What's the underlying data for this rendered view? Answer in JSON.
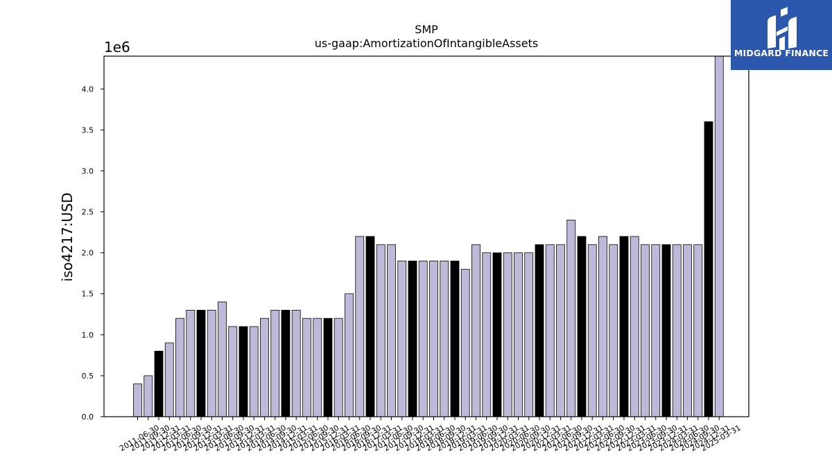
{
  "chart_data": {
    "type": "bar",
    "title": "SMP",
    "subtitle": "us-gaap:AmortizationOfIntangibleAssets",
    "ylabel": "iso4217:USD",
    "xlabel": "",
    "offset_text": "1e6",
    "scale": 1000000,
    "ylim": [
      0,
      4400000
    ],
    "yticks": [
      0,
      500000,
      1000000,
      1500000,
      2000000,
      2500000,
      3000000,
      3500000,
      4000000
    ],
    "ytick_labels": [
      "0.0",
      "0.5",
      "1.0",
      "1.5",
      "2.0",
      "2.5",
      "3.0",
      "3.5",
      "4.0"
    ],
    "grid": false,
    "colors": {
      "regular": "#bcbad8",
      "highlight": "#000000",
      "edge": "#000000"
    },
    "categories": [
      "2011-06-30",
      "2011-09-30",
      "2011-12-31",
      "2012-03-31",
      "2012-06-30",
      "2012-09-30",
      "2012-12-31",
      "2013-03-31",
      "2013-06-30",
      "2013-09-30",
      "2013-12-31",
      "2014-03-31",
      "2014-06-30",
      "2014-09-30",
      "2014-12-31",
      "2015-03-31",
      "2015-06-30",
      "2015-09-30",
      "2015-12-31",
      "2016-03-31",
      "2016-06-30",
      "2016-09-30",
      "2016-12-31",
      "2017-03-31",
      "2017-06-30",
      "2017-09-30",
      "2017-12-31",
      "2018-03-31",
      "2018-06-30",
      "2018-09-30",
      "2018-12-31",
      "2019-03-31",
      "2019-06-30",
      "2019-09-30",
      "2019-12-31",
      "2020-03-31",
      "2020-06-30",
      "2020-09-30",
      "2020-12-31",
      "2021-03-31",
      "2021-06-30",
      "2021-09-30",
      "2021-12-31",
      "2022-03-31",
      "2022-06-30",
      "2022-09-30",
      "2022-12-31",
      "2023-03-31",
      "2023-06-30",
      "2023-09-30",
      "2023-12-31",
      "2024-03-31",
      "2024-06-30",
      "2024-09-30",
      "2024-12-31",
      "2025-03-31"
    ],
    "values": [
      400000,
      500000,
      800000,
      900000,
      1200000,
      1300000,
      1300000,
      1300000,
      1400000,
      1100000,
      1100000,
      1100000,
      1200000,
      1300000,
      1300000,
      1300000,
      1200000,
      1200000,
      1200000,
      1200000,
      1500000,
      2200000,
      2200000,
      2100000,
      2100000,
      1900000,
      1900000,
      1900000,
      1900000,
      1900000,
      1900000,
      1800000,
      2100000,
      2000000,
      2000000,
      2000000,
      2000000,
      2000000,
      2100000,
      2100000,
      2100000,
      2400000,
      2200000,
      2100000,
      2200000,
      2100000,
      2200000,
      2200000,
      2100000,
      2100000,
      2100000,
      2100000,
      2100000,
      2100000,
      3600000,
      4400000
    ],
    "highlight": [
      false,
      false,
      true,
      false,
      false,
      false,
      true,
      false,
      false,
      false,
      true,
      false,
      false,
      false,
      true,
      false,
      false,
      false,
      true,
      false,
      false,
      false,
      true,
      false,
      false,
      false,
      true,
      false,
      false,
      false,
      true,
      false,
      false,
      false,
      true,
      false,
      false,
      false,
      true,
      false,
      false,
      false,
      true,
      false,
      false,
      false,
      true,
      false,
      false,
      false,
      true,
      false,
      false,
      false,
      true,
      false
    ]
  },
  "logo": {
    "text": "MIDGARD FINANCE",
    "background": "#2b57ad"
  }
}
